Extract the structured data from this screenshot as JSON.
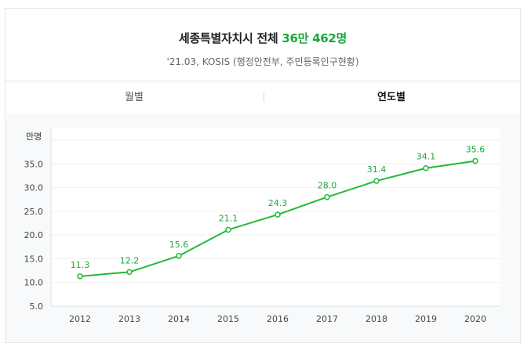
{
  "header": {
    "title_prefix": "세종특별자치시 전체",
    "title_highlight": "36만 462명",
    "source": "'21.03, KOSIS (행정안전부, 주민등록인구현황)"
  },
  "tabs": [
    {
      "label": "월별",
      "active": false
    },
    {
      "label": "연도별",
      "active": true
    }
  ],
  "colors": {
    "accent": "#1aa83a",
    "line": "#22b83c"
  },
  "chart_data": {
    "type": "line",
    "ylabel": "만명",
    "x": [
      "2012",
      "2013",
      "2014",
      "2015",
      "2016",
      "2017",
      "2018",
      "2019",
      "2020"
    ],
    "values": [
      11.3,
      12.2,
      15.6,
      21.1,
      24.3,
      28.0,
      31.4,
      34.1,
      35.6
    ],
    "data_labels": [
      "11.3",
      "12.2",
      "15.6",
      "21.1",
      "24.3",
      "28.0",
      "31.4",
      "34.1",
      "35.6"
    ],
    "y_ticks": [
      "5.0",
      "10.0",
      "15.0",
      "20.0",
      "25.0",
      "30.0",
      "35.0"
    ],
    "ylim": [
      5,
      40
    ],
    "grid": true
  }
}
